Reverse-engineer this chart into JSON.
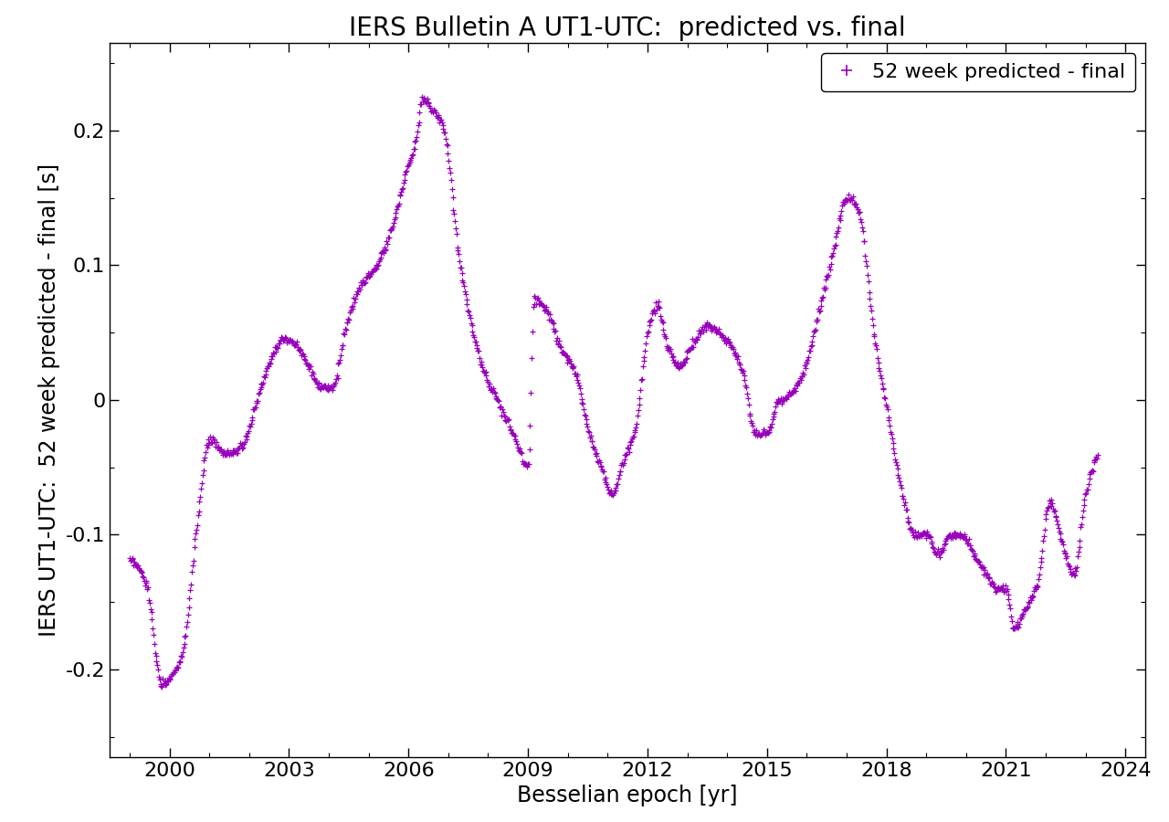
{
  "title": "IERS Bulletin A UT1-UTC:  predicted vs. final",
  "xlabel": "Besselian epoch [yr]",
  "ylabel": "IERS UT1-UTC:  52 week predicted - final [s]",
  "legend_label": "52 week predicted - final",
  "marker": "+",
  "color": "#9900bb",
  "markersize": 5,
  "markeredgewidth": 0.9,
  "xlim": [
    1998.5,
    2024.5
  ],
  "ylim": [
    -0.265,
    0.265
  ],
  "xticks": [
    2000,
    2003,
    2006,
    2009,
    2012,
    2015,
    2018,
    2021,
    2024
  ],
  "yticks": [
    -0.2,
    -0.1,
    0,
    0.1,
    0.2
  ],
  "title_fontsize": 20,
  "label_fontsize": 17,
  "tick_fontsize": 16,
  "legend_fontsize": 16
}
